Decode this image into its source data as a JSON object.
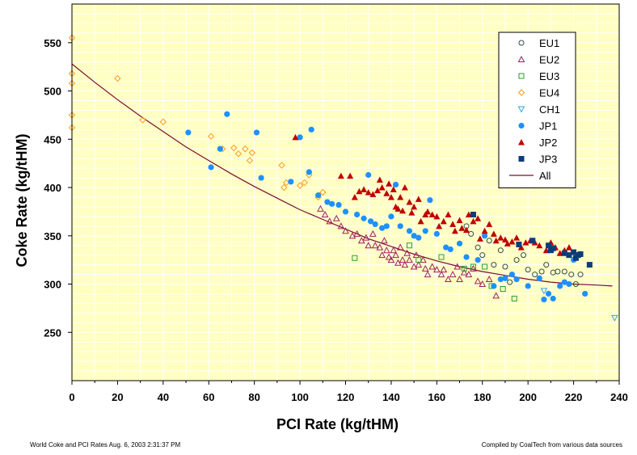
{
  "footer": {
    "left": "World Coke and PCI Rates  Aug. 6, 2003  2:31:37 PM",
    "right": "Compiled by CoalTech from various data sources"
  },
  "chart_data": {
    "type": "scatter",
    "title": "",
    "xlabel": "PCI Rate (kg/tHM)",
    "ylabel": "Coke Rate (kg/tHM)",
    "xlim": [
      0,
      240
    ],
    "ylim": [
      200,
      590
    ],
    "xticks": [
      0,
      20,
      40,
      60,
      80,
      100,
      120,
      140,
      160,
      180,
      200,
      220,
      240
    ],
    "yticks": [
      250,
      300,
      350,
      400,
      450,
      500,
      550
    ],
    "grid": true,
    "legend_position": "top-right",
    "colors": {
      "plot_background": "#ffffc4",
      "grid": "#ffffff"
    },
    "series": [
      {
        "name": "EU1",
        "marker": "circle-open",
        "color": "#2e4a4a",
        "points": [
          [
            173,
            360
          ],
          [
            175,
            352
          ],
          [
            178,
            338
          ],
          [
            180,
            330
          ],
          [
            183,
            345
          ],
          [
            185,
            320
          ],
          [
            188,
            335
          ],
          [
            190,
            318
          ],
          [
            192,
            302
          ],
          [
            195,
            325
          ],
          [
            198,
            330
          ],
          [
            200,
            315
          ],
          [
            203,
            310
          ],
          [
            206,
            313
          ],
          [
            208,
            320
          ],
          [
            211,
            312
          ],
          [
            213,
            313
          ],
          [
            216,
            313
          ],
          [
            219,
            310
          ],
          [
            221,
            300
          ],
          [
            223,
            310
          ]
        ]
      },
      {
        "name": "EU2",
        "marker": "triangle-open",
        "color": "#9b2060",
        "points": [
          [
            109,
            378
          ],
          [
            111,
            372
          ],
          [
            113,
            365
          ],
          [
            116,
            368
          ],
          [
            118,
            360
          ],
          [
            120,
            355
          ],
          [
            123,
            350
          ],
          [
            125,
            352
          ],
          [
            127,
            345
          ],
          [
            129,
            348
          ],
          [
            130,
            340
          ],
          [
            132,
            352
          ],
          [
            133,
            340
          ],
          [
            135,
            338
          ],
          [
            136,
            330
          ],
          [
            137,
            345
          ],
          [
            138,
            335
          ],
          [
            139,
            328
          ],
          [
            140,
            325
          ],
          [
            141,
            335
          ],
          [
            142,
            330
          ],
          [
            143,
            322
          ],
          [
            144,
            338
          ],
          [
            145,
            325
          ],
          [
            146,
            320
          ],
          [
            147,
            332
          ],
          [
            148,
            325
          ],
          [
            150,
            318
          ],
          [
            151,
            330
          ],
          [
            152,
            320
          ],
          [
            154,
            325
          ],
          [
            155,
            316
          ],
          [
            156,
            310
          ],
          [
            158,
            318
          ],
          [
            160,
            315
          ],
          [
            162,
            310
          ],
          [
            163,
            315
          ],
          [
            165,
            305
          ],
          [
            167,
            310
          ],
          [
            169,
            318
          ],
          [
            170,
            305
          ],
          [
            172,
            312
          ],
          [
            174,
            310
          ],
          [
            176,
            316
          ],
          [
            178,
            303
          ],
          [
            180,
            300
          ],
          [
            183,
            305
          ],
          [
            186,
            288
          ]
        ]
      },
      {
        "name": "EU3",
        "marker": "square-open",
        "color": "#2e9b2e",
        "points": [
          [
            124,
            327
          ],
          [
            148,
            340
          ],
          [
            152,
            325
          ],
          [
            162,
            328
          ],
          [
            172,
            316
          ],
          [
            176,
            318
          ],
          [
            181,
            318
          ],
          [
            184,
            298
          ],
          [
            189,
            295
          ],
          [
            194,
            285
          ]
        ]
      },
      {
        "name": "EU4",
        "marker": "diamond-open",
        "color": "#ff9b1a",
        "points": [
          [
            0,
            555
          ],
          [
            0,
            518
          ],
          [
            0,
            508
          ],
          [
            0,
            475
          ],
          [
            0,
            462
          ],
          [
            20,
            513
          ],
          [
            31,
            470
          ],
          [
            40,
            468
          ],
          [
            61,
            453
          ],
          [
            66,
            440
          ],
          [
            71,
            441
          ],
          [
            73,
            435
          ],
          [
            76,
            440
          ],
          [
            78,
            428
          ],
          [
            79,
            436
          ],
          [
            92,
            423
          ],
          [
            93,
            400
          ],
          [
            94,
            405
          ],
          [
            100,
            402
          ],
          [
            102,
            405
          ],
          [
            104,
            413
          ],
          [
            108,
            390
          ],
          [
            110,
            395
          ]
        ]
      },
      {
        "name": "CH1",
        "marker": "triangle-down-open",
        "color": "#2ea6e6",
        "points": [
          [
            207,
            293
          ],
          [
            238,
            265
          ]
        ]
      },
      {
        "name": "JP1",
        "marker": "circle-filled",
        "color": "#1e90ff",
        "points": [
          [
            51,
            457
          ],
          [
            61,
            421
          ],
          [
            65,
            440
          ],
          [
            68,
            476
          ],
          [
            81,
            457
          ],
          [
            83,
            410
          ],
          [
            96,
            406
          ],
          [
            100,
            452
          ],
          [
            104,
            416
          ],
          [
            105,
            460
          ],
          [
            108,
            392
          ],
          [
            112,
            385
          ],
          [
            114,
            383
          ],
          [
            117,
            382
          ],
          [
            120,
            375
          ],
          [
            125,
            372
          ],
          [
            128,
            368
          ],
          [
            130,
            413
          ],
          [
            131,
            365
          ],
          [
            133,
            362
          ],
          [
            136,
            358
          ],
          [
            138,
            360
          ],
          [
            140,
            370
          ],
          [
            142,
            403
          ],
          [
            144,
            360
          ],
          [
            148,
            355
          ],
          [
            150,
            350
          ],
          [
            152,
            348
          ],
          [
            155,
            355
          ],
          [
            157,
            387
          ],
          [
            160,
            352
          ],
          [
            164,
            338
          ],
          [
            166,
            336
          ],
          [
            170,
            342
          ],
          [
            173,
            328
          ],
          [
            178,
            325
          ],
          [
            181,
            350
          ],
          [
            185,
            298
          ],
          [
            188,
            305
          ],
          [
            190,
            306
          ],
          [
            193,
            310
          ],
          [
            195,
            305
          ],
          [
            200,
            298
          ],
          [
            205,
            306
          ],
          [
            207,
            284
          ],
          [
            209,
            290
          ],
          [
            211,
            285
          ],
          [
            214,
            298
          ],
          [
            216,
            302
          ],
          [
            218,
            300
          ],
          [
            220,
            325
          ],
          [
            225,
            290
          ]
        ]
      },
      {
        "name": "JP2",
        "marker": "triangle-filled",
        "color": "#c00000",
        "points": [
          [
            98,
            452
          ],
          [
            118,
            412
          ],
          [
            122,
            412
          ],
          [
            124,
            390
          ],
          [
            126,
            396
          ],
          [
            128,
            398
          ],
          [
            130,
            395
          ],
          [
            132,
            393
          ],
          [
            134,
            397
          ],
          [
            135,
            408
          ],
          [
            136,
            400
          ],
          [
            138,
            394
          ],
          [
            139,
            404
          ],
          [
            140,
            390
          ],
          [
            141,
            398
          ],
          [
            142,
            380
          ],
          [
            143,
            378
          ],
          [
            144,
            390
          ],
          [
            145,
            376
          ],
          [
            146,
            400
          ],
          [
            148,
            385
          ],
          [
            149,
            374
          ],
          [
            150,
            380
          ],
          [
            152,
            388
          ],
          [
            153,
            365
          ],
          [
            155,
            372
          ],
          [
            156,
            375
          ],
          [
            158,
            372
          ],
          [
            160,
            370
          ],
          [
            161,
            360
          ],
          [
            163,
            365
          ],
          [
            165,
            372
          ],
          [
            167,
            362
          ],
          [
            168,
            355
          ],
          [
            170,
            366
          ],
          [
            171,
            358
          ],
          [
            173,
            356
          ],
          [
            174,
            372
          ],
          [
            176,
            365
          ],
          [
            178,
            368
          ],
          [
            179,
            347
          ],
          [
            181,
            355
          ],
          [
            183,
            362
          ],
          [
            185,
            352
          ],
          [
            186,
            345
          ],
          [
            188,
            348
          ],
          [
            190,
            346
          ],
          [
            191,
            342
          ],
          [
            193,
            344
          ],
          [
            195,
            348
          ],
          [
            197,
            338
          ],
          [
            199,
            343
          ],
          [
            201,
            345
          ],
          [
            203,
            343
          ],
          [
            205,
            340
          ],
          [
            208,
            335
          ],
          [
            210,
            343
          ],
          [
            212,
            338
          ],
          [
            214,
            332
          ],
          [
            216,
            335
          ],
          [
            218,
            338
          ]
        ]
      },
      {
        "name": "JP3",
        "marker": "square-filled",
        "color": "#0d3c78",
        "points": [
          [
            176,
            372
          ],
          [
            196,
            341
          ],
          [
            202,
            345
          ],
          [
            209,
            340
          ],
          [
            210,
            335
          ],
          [
            211,
            337
          ],
          [
            216,
            332
          ],
          [
            218,
            330
          ],
          [
            220,
            333
          ],
          [
            221,
            327
          ],
          [
            222,
            330
          ],
          [
            223,
            331
          ],
          [
            227,
            320
          ]
        ]
      },
      {
        "name": "All",
        "marker": "line",
        "color": "#7a0d2e",
        "points": [
          [
            0,
            528
          ],
          [
            10,
            509
          ],
          [
            20,
            491
          ],
          [
            30,
            474
          ],
          [
            40,
            458
          ],
          [
            50,
            442
          ],
          [
            60,
            428
          ],
          [
            70,
            414
          ],
          [
            80,
            401
          ],
          [
            90,
            389
          ],
          [
            100,
            377
          ],
          [
            110,
            367
          ],
          [
            120,
            357
          ],
          [
            130,
            347
          ],
          [
            140,
            339
          ],
          [
            150,
            331
          ],
          [
            160,
            324
          ],
          [
            170,
            318
          ],
          [
            180,
            313
          ],
          [
            190,
            309
          ],
          [
            200,
            305
          ],
          [
            210,
            302
          ],
          [
            220,
            300
          ],
          [
            230,
            299
          ],
          [
            237,
            298
          ]
        ]
      }
    ]
  }
}
